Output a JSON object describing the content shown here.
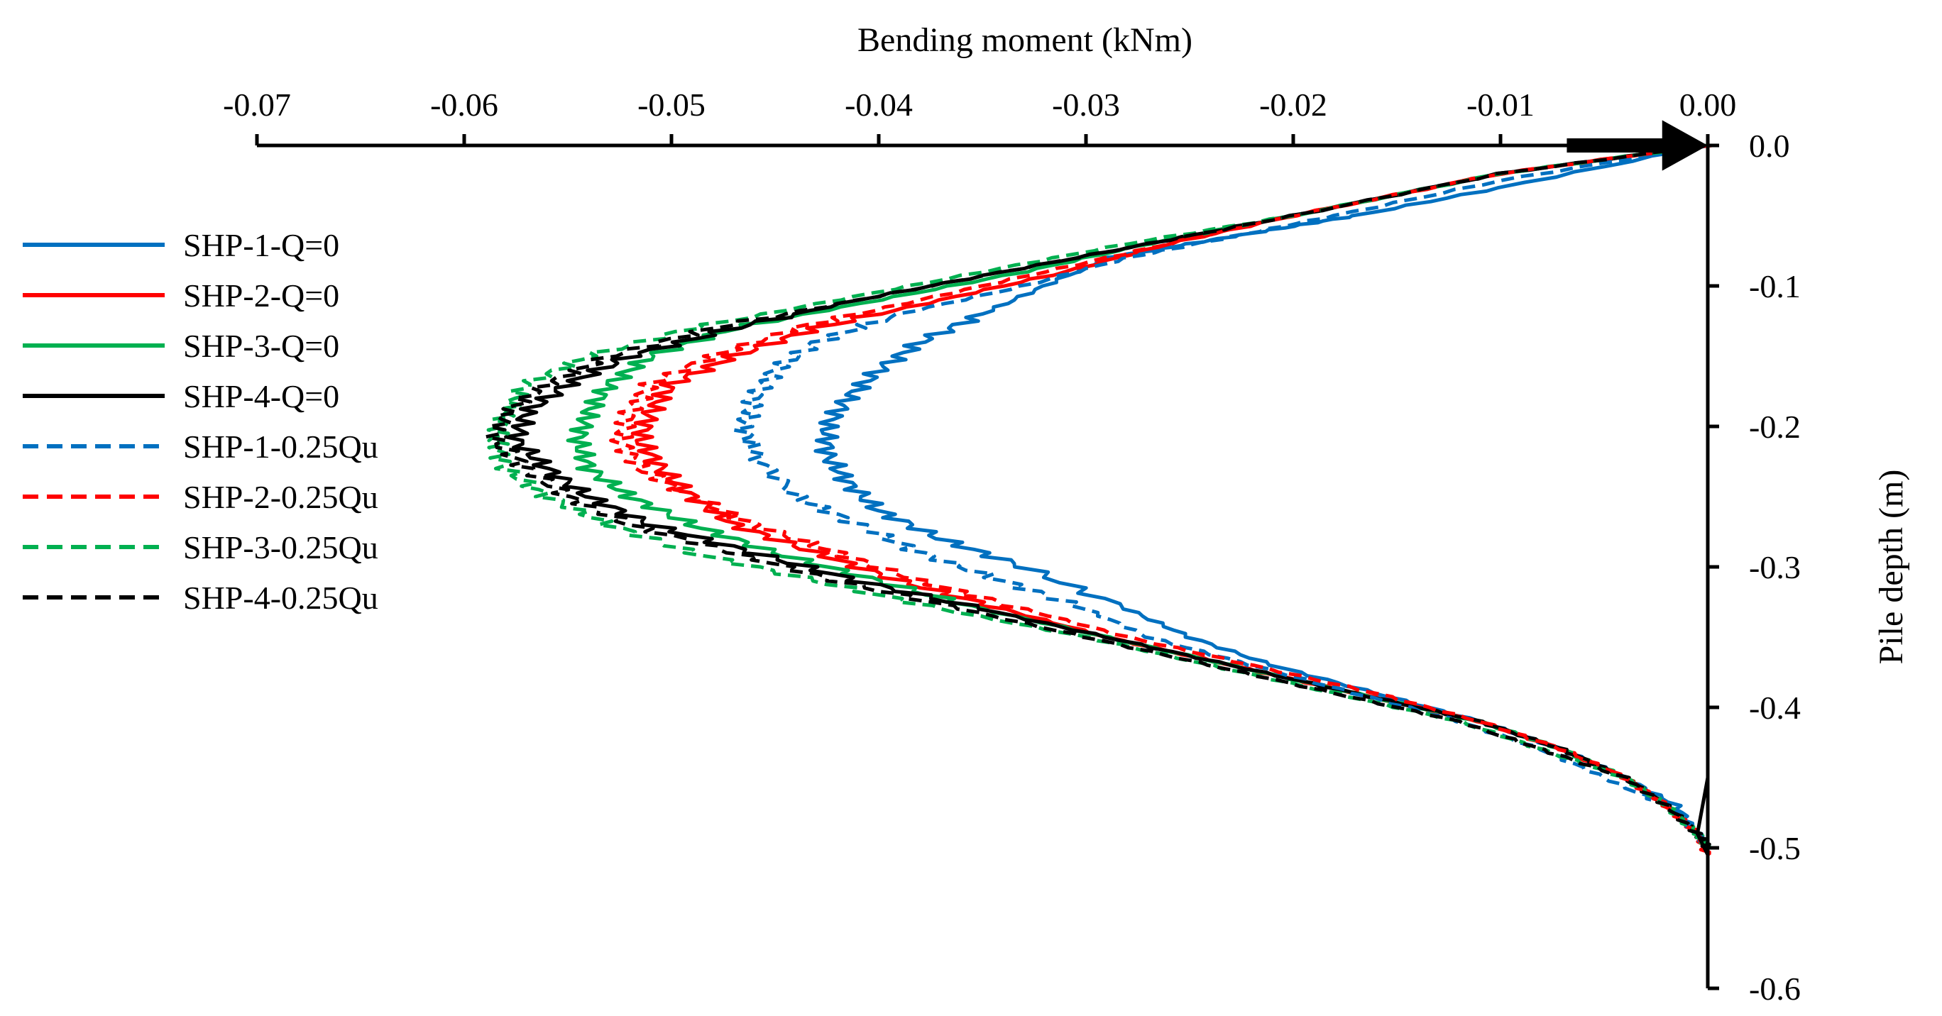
{
  "chart_data": {
    "type": "line",
    "xlabel": "Bending moment (kNm)",
    "ylabel": "Pile depth (m)",
    "xlim": [
      -0.07,
      0.0
    ],
    "ylim": [
      -0.6,
      0.0
    ],
    "x_ticks": [
      "-0.07",
      "-0.06",
      "-0.05",
      "-0.04",
      "-0.03",
      "-0.02",
      "-0.01",
      "0.00"
    ],
    "y_ticks": [
      "0.0",
      "-0.1",
      "-0.2",
      "-0.3",
      "-0.4",
      "-0.5",
      "-0.6"
    ],
    "x_axis_position": "top",
    "y_axis_position": "right",
    "grid": false,
    "legend_position": "left",
    "series": [
      {
        "name": "SHP-1-Q=0",
        "color": "#0070C0",
        "dash": "solid",
        "points": [
          [
            0.0,
            0.0
          ],
          [
            -0.01,
            -0.03
          ],
          [
            -0.017,
            -0.05
          ],
          [
            -0.021,
            -0.06
          ],
          [
            -0.025,
            -0.07
          ],
          [
            -0.029,
            -0.08
          ],
          [
            -0.032,
            -0.1
          ],
          [
            -0.035,
            -0.12
          ],
          [
            -0.038,
            -0.14
          ],
          [
            -0.04,
            -0.16
          ],
          [
            -0.0415,
            -0.18
          ],
          [
            -0.0425,
            -0.2
          ],
          [
            -0.0425,
            -0.22
          ],
          [
            -0.0415,
            -0.24
          ],
          [
            -0.04,
            -0.26
          ],
          [
            -0.037,
            -0.28
          ],
          [
            -0.033,
            -0.3
          ],
          [
            -0.028,
            -0.33
          ],
          [
            -0.025,
            -0.35
          ],
          [
            -0.021,
            -0.37
          ],
          [
            -0.016,
            -0.39
          ],
          [
            -0.011,
            -0.41
          ],
          [
            -0.007,
            -0.43
          ],
          [
            -0.004,
            -0.45
          ],
          [
            -0.0015,
            -0.47
          ],
          [
            -0.0005,
            -0.49
          ],
          [
            0.0,
            -0.5
          ]
        ]
      },
      {
        "name": "SHP-2-Q=0",
        "color": "#FF0000",
        "dash": "solid",
        "points": [
          [
            0.0,
            0.0
          ],
          [
            -0.01,
            -0.02
          ],
          [
            -0.02,
            -0.05
          ],
          [
            -0.026,
            -0.07
          ],
          [
            -0.031,
            -0.09
          ],
          [
            -0.037,
            -0.11
          ],
          [
            -0.043,
            -0.13
          ],
          [
            -0.047,
            -0.15
          ],
          [
            -0.05,
            -0.17
          ],
          [
            -0.051,
            -0.19
          ],
          [
            -0.0515,
            -0.21
          ],
          [
            -0.0505,
            -0.23
          ],
          [
            -0.049,
            -0.25
          ],
          [
            -0.047,
            -0.27
          ],
          [
            -0.043,
            -0.29
          ],
          [
            -0.039,
            -0.31
          ],
          [
            -0.034,
            -0.33
          ],
          [
            -0.029,
            -0.35
          ],
          [
            -0.023,
            -0.37
          ],
          [
            -0.017,
            -0.39
          ],
          [
            -0.011,
            -0.41
          ],
          [
            -0.007,
            -0.43
          ],
          [
            -0.004,
            -0.45
          ],
          [
            -0.002,
            -0.47
          ],
          [
            -0.0005,
            -0.49
          ],
          [
            0.0,
            -0.505
          ]
        ]
      },
      {
        "name": "SHP-3-Q=0",
        "color": "#00B050",
        "dash": "solid",
        "points": [
          [
            0.0,
            0.0
          ],
          [
            -0.01,
            -0.02
          ],
          [
            -0.02,
            -0.05
          ],
          [
            -0.027,
            -0.07
          ],
          [
            -0.033,
            -0.09
          ],
          [
            -0.04,
            -0.11
          ],
          [
            -0.047,
            -0.13
          ],
          [
            -0.051,
            -0.15
          ],
          [
            -0.053,
            -0.17
          ],
          [
            -0.054,
            -0.19
          ],
          [
            -0.0545,
            -0.21
          ],
          [
            -0.054,
            -0.23
          ],
          [
            -0.052,
            -0.25
          ],
          [
            -0.049,
            -0.27
          ],
          [
            -0.045,
            -0.29
          ],
          [
            -0.04,
            -0.31
          ],
          [
            -0.035,
            -0.33
          ],
          [
            -0.029,
            -0.35
          ],
          [
            -0.023,
            -0.37
          ],
          [
            -0.017,
            -0.39
          ],
          [
            -0.011,
            -0.41
          ],
          [
            -0.007,
            -0.43
          ],
          [
            -0.004,
            -0.45
          ],
          [
            -0.002,
            -0.47
          ],
          [
            -0.0005,
            -0.49
          ],
          [
            0.0,
            -0.5
          ]
        ]
      },
      {
        "name": "SHP-4-Q=0",
        "color": "#000000",
        "dash": "solid",
        "points": [
          [
            0.0,
            0.0
          ],
          [
            -0.01,
            -0.02
          ],
          [
            -0.02,
            -0.05
          ],
          [
            -0.027,
            -0.07
          ],
          [
            -0.034,
            -0.09
          ],
          [
            -0.041,
            -0.11
          ],
          [
            -0.047,
            -0.13
          ],
          [
            -0.052,
            -0.15
          ],
          [
            -0.055,
            -0.17
          ],
          [
            -0.057,
            -0.19
          ],
          [
            -0.0575,
            -0.21
          ],
          [
            -0.056,
            -0.23
          ],
          [
            -0.054,
            -0.25
          ],
          [
            -0.051,
            -0.27
          ],
          [
            -0.046,
            -0.29
          ],
          [
            -0.041,
            -0.31
          ],
          [
            -0.035,
            -0.33
          ],
          [
            -0.029,
            -0.35
          ],
          [
            -0.023,
            -0.37
          ],
          [
            -0.017,
            -0.39
          ],
          [
            -0.011,
            -0.41
          ],
          [
            -0.007,
            -0.43
          ],
          [
            -0.004,
            -0.45
          ],
          [
            -0.002,
            -0.47
          ],
          [
            -0.0005,
            -0.49
          ],
          [
            0.0,
            -0.5
          ]
        ]
      },
      {
        "name": "SHP-1-0.25Qu",
        "color": "#0070C0",
        "dash": "dashed",
        "points": [
          [
            0.0,
            0.0
          ],
          [
            -0.01,
            -0.025
          ],
          [
            -0.018,
            -0.05
          ],
          [
            -0.023,
            -0.065
          ],
          [
            -0.028,
            -0.08
          ],
          [
            -0.033,
            -0.1
          ],
          [
            -0.039,
            -0.12
          ],
          [
            -0.043,
            -0.14
          ],
          [
            -0.045,
            -0.16
          ],
          [
            -0.046,
            -0.18
          ],
          [
            -0.0465,
            -0.2
          ],
          [
            -0.046,
            -0.22
          ],
          [
            -0.044,
            -0.25
          ],
          [
            -0.041,
            -0.27
          ],
          [
            -0.038,
            -0.29
          ],
          [
            -0.034,
            -0.31
          ],
          [
            -0.03,
            -0.33
          ],
          [
            -0.027,
            -0.35
          ],
          [
            -0.022,
            -0.37
          ],
          [
            -0.017,
            -0.39
          ],
          [
            -0.012,
            -0.41
          ],
          [
            -0.008,
            -0.43
          ],
          [
            -0.005,
            -0.45
          ],
          [
            -0.002,
            -0.47
          ],
          [
            -0.0005,
            -0.49
          ],
          [
            0.0,
            -0.5
          ]
        ]
      },
      {
        "name": "SHP-2-0.25Qu",
        "color": "#FF0000",
        "dash": "dashed",
        "points": [
          [
            0.0,
            0.0
          ],
          [
            -0.01,
            -0.02
          ],
          [
            -0.02,
            -0.05
          ],
          [
            -0.026,
            -0.07
          ],
          [
            -0.032,
            -0.09
          ],
          [
            -0.038,
            -0.11
          ],
          [
            -0.044,
            -0.13
          ],
          [
            -0.048,
            -0.15
          ],
          [
            -0.051,
            -0.17
          ],
          [
            -0.052,
            -0.19
          ],
          [
            -0.0525,
            -0.21
          ],
          [
            -0.0515,
            -0.23
          ],
          [
            -0.049,
            -0.25
          ],
          [
            -0.046,
            -0.27
          ],
          [
            -0.042,
            -0.29
          ],
          [
            -0.038,
            -0.31
          ],
          [
            -0.033,
            -0.33
          ],
          [
            -0.028,
            -0.35
          ],
          [
            -0.022,
            -0.37
          ],
          [
            -0.016,
            -0.39
          ],
          [
            -0.011,
            -0.41
          ],
          [
            -0.007,
            -0.43
          ],
          [
            -0.004,
            -0.45
          ],
          [
            -0.002,
            -0.47
          ],
          [
            -0.0005,
            -0.49
          ],
          [
            0.0,
            -0.505
          ]
        ]
      },
      {
        "name": "SHP-3-0.25Qu",
        "color": "#00B050",
        "dash": "dashed",
        "points": [
          [
            0.0,
            0.0
          ],
          [
            -0.01,
            -0.02
          ],
          [
            -0.02,
            -0.05
          ],
          [
            -0.028,
            -0.07
          ],
          [
            -0.035,
            -0.09
          ],
          [
            -0.042,
            -0.11
          ],
          [
            -0.049,
            -0.13
          ],
          [
            -0.054,
            -0.15
          ],
          [
            -0.057,
            -0.17
          ],
          [
            -0.058,
            -0.19
          ],
          [
            -0.0585,
            -0.21
          ],
          [
            -0.058,
            -0.23
          ],
          [
            -0.056,
            -0.25
          ],
          [
            -0.053,
            -0.27
          ],
          [
            -0.049,
            -0.29
          ],
          [
            -0.043,
            -0.31
          ],
          [
            -0.037,
            -0.33
          ],
          [
            -0.03,
            -0.35
          ],
          [
            -0.024,
            -0.37
          ],
          [
            -0.018,
            -0.39
          ],
          [
            -0.012,
            -0.41
          ],
          [
            -0.008,
            -0.43
          ],
          [
            -0.004,
            -0.45
          ],
          [
            -0.002,
            -0.47
          ],
          [
            -0.0005,
            -0.49
          ],
          [
            0.0,
            -0.5
          ]
        ]
      },
      {
        "name": "SHP-4-0.25Qu",
        "color": "#000000",
        "dash": "dashed",
        "points": [
          [
            0.0,
            0.0
          ],
          [
            -0.01,
            -0.02
          ],
          [
            -0.02,
            -0.05
          ],
          [
            -0.027,
            -0.07
          ],
          [
            -0.034,
            -0.09
          ],
          [
            -0.041,
            -0.11
          ],
          [
            -0.048,
            -0.13
          ],
          [
            -0.053,
            -0.15
          ],
          [
            -0.056,
            -0.17
          ],
          [
            -0.058,
            -0.19
          ],
          [
            -0.0585,
            -0.21
          ],
          [
            -0.057,
            -0.23
          ],
          [
            -0.055,
            -0.25
          ],
          [
            -0.052,
            -0.27
          ],
          [
            -0.047,
            -0.29
          ],
          [
            -0.042,
            -0.31
          ],
          [
            -0.036,
            -0.33
          ],
          [
            -0.03,
            -0.35
          ],
          [
            -0.024,
            -0.37
          ],
          [
            -0.018,
            -0.39
          ],
          [
            -0.012,
            -0.41
          ],
          [
            -0.008,
            -0.43
          ],
          [
            -0.004,
            -0.45
          ],
          [
            -0.002,
            -0.47
          ],
          [
            -0.0005,
            -0.49
          ],
          [
            0.0,
            -0.5
          ]
        ]
      }
    ]
  }
}
